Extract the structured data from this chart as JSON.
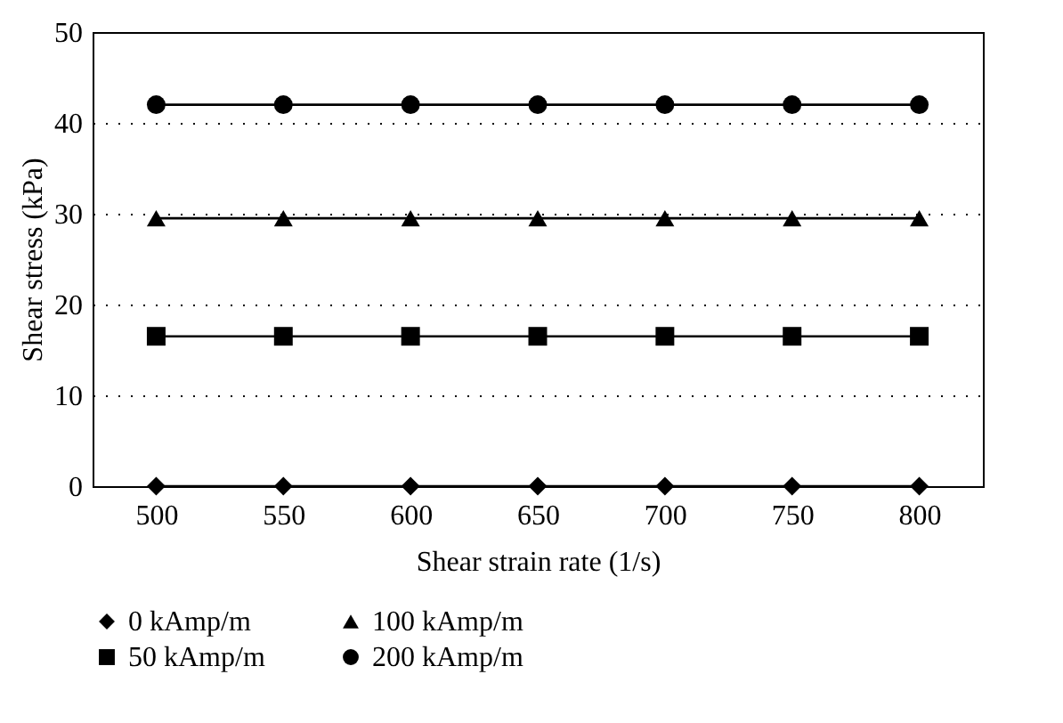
{
  "chart_data": {
    "type": "line",
    "xlabel": "Shear strain rate (1/s)",
    "ylabel": "Shear stress (kPa)",
    "categories": [
      "500",
      "550",
      "600",
      "650",
      "700",
      "750",
      "800"
    ],
    "series": [
      {
        "name": "0 kAmp/m",
        "color": "#000000",
        "marker": "diamond",
        "values": [
          0,
          0,
          0,
          0,
          0,
          0,
          0
        ]
      },
      {
        "name": "50 kAmp/m",
        "color": "#000000",
        "marker": "square",
        "values": [
          16.5,
          16.5,
          16.5,
          16.5,
          16.5,
          16.5,
          16.5
        ]
      },
      {
        "name": "100 kAmp/m",
        "color": "#000000",
        "marker": "triangle",
        "values": [
          29.5,
          29.5,
          29.5,
          29.5,
          29.5,
          29.5,
          29.5
        ]
      },
      {
        "name": "200 kAmp/m",
        "color": "#000000",
        "marker": "circle",
        "values": [
          42,
          42,
          42,
          42,
          42,
          42,
          42
        ]
      }
    ],
    "ylim": [
      0,
      50
    ],
    "yticks": [
      0,
      10,
      20,
      30,
      40,
      50
    ],
    "grid": "y",
    "legend": "bottom",
    "line_style": "solid"
  }
}
